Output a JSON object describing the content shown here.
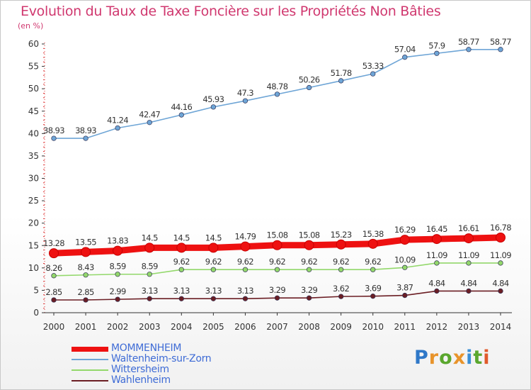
{
  "title": "Evolution du Taux de Taxe Foncière sur les Propriétés Non Bâties",
  "unit": "(en %)",
  "brand": {
    "letters": [
      "P",
      "r",
      "o",
      "x",
      "i",
      "t",
      "i"
    ],
    "colors": [
      "#2f78c8",
      "#e8942b",
      "#5aa72e",
      "#e8942b",
      "#3a8fd6",
      "#5aa72e",
      "#e05a2b"
    ]
  },
  "chart_data": {
    "type": "line",
    "title": "Evolution du Taux de Taxe Foncière sur les Propriétés Non Bâties",
    "ylabel": "(en %)",
    "xlabel": "",
    "x": [
      "2000",
      "2001",
      "2002",
      "2003",
      "2004",
      "2005",
      "2006",
      "2007",
      "2008",
      "2009",
      "2010",
      "2011",
      "2012",
      "2013",
      "2014"
    ],
    "ylim": [
      0,
      60
    ],
    "yticks": [
      "0",
      "5",
      "10",
      "15",
      "20",
      "25",
      "30",
      "35",
      "40",
      "45",
      "50",
      "55",
      "60"
    ],
    "grid": false,
    "legend_position": "bottom-left",
    "series": [
      {
        "name": "MOMMENHEIM",
        "color": "#ee1111",
        "values": [
          13.28,
          13.55,
          13.83,
          14.5,
          14.5,
          14.5,
          14.79,
          15.08,
          15.08,
          15.23,
          15.38,
          16.29,
          16.45,
          16.61,
          16.78
        ],
        "labels": [
          "13.28",
          "13.55",
          "13.83",
          "14.5",
          "14.5",
          "14.5",
          "14.79",
          "15.08",
          "15.08",
          "15.23",
          "15.38",
          "16.29",
          "16.45",
          "16.61",
          "16.78"
        ]
      },
      {
        "name": "Waltenheim-sur-Zorn",
        "color": "#6ea5d6",
        "values": [
          38.93,
          38.93,
          41.24,
          42.47,
          44.16,
          45.93,
          47.3,
          48.78,
          50.26,
          51.78,
          53.33,
          57.04,
          57.9,
          58.77,
          58.77
        ],
        "labels": [
          "38.93",
          "38.93",
          "41.24",
          "42.47",
          "44.16",
          "45.93",
          "47.3",
          "48.78",
          "50.26",
          "51.78",
          "53.33",
          "57.04",
          "57.9",
          "58.77",
          "58.77"
        ]
      },
      {
        "name": "Wittersheim",
        "color": "#93d86b",
        "values": [
          8.26,
          8.43,
          8.59,
          8.59,
          9.62,
          9.62,
          9.62,
          9.62,
          9.62,
          9.62,
          9.62,
          10.09,
          11.09,
          11.09,
          11.09
        ],
        "labels": [
          "8.26",
          "8.43",
          "8.59",
          "8.59",
          "9.62",
          "9.62",
          "9.62",
          "9.62",
          "9.62",
          "9.62",
          "9.62",
          "10.09",
          "11.09",
          "11.09",
          "11.09"
        ]
      },
      {
        "name": "Wahlenheim",
        "color": "#6b1e24",
        "values": [
          2.85,
          2.85,
          2.99,
          3.13,
          3.13,
          3.13,
          3.13,
          3.29,
          3.29,
          3.62,
          3.69,
          3.87,
          4.84,
          4.84,
          4.84
        ],
        "labels": [
          "2.85",
          "2.85",
          "2.99",
          "3.13",
          "3.13",
          "3.13",
          "3.13",
          "3.29",
          "3.29",
          "3.62",
          "3.69",
          "3.87",
          "4.84",
          "4.84",
          "4.84"
        ]
      }
    ]
  }
}
